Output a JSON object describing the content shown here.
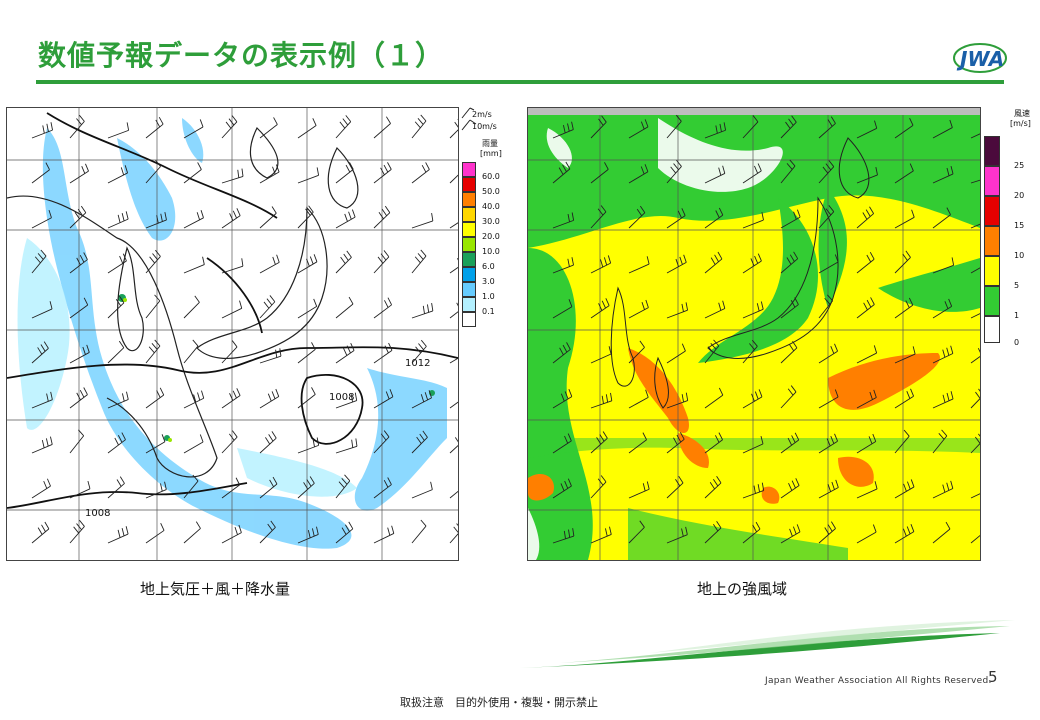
{
  "slide": {
    "title": "数値予報データの表示例（１）",
    "logo_text": "JWA",
    "page_number": "5",
    "copyright": "Japan Weather Association All Rights Reserved.",
    "notice": "取扱注意　目的外使用・複製・開示禁止"
  },
  "left_map": {
    "caption": "地上気圧＋風＋降水量",
    "isobar_labels": [
      "1012",
      "1008",
      "1008"
    ],
    "wind_legend": [
      "2m/s",
      "10m/s"
    ],
    "legend_title": "雨量",
    "legend_unit": "[mm]",
    "legend_levels": [
      "60.0",
      "50.0",
      "40.0",
      "30.0",
      "20.0",
      "10.0",
      "6.0",
      "3.0",
      "1.0",
      "0.1"
    ],
    "legend_colors": [
      "#ff33cc",
      "#e60000",
      "#ff7f00",
      "#ffd700",
      "#ffff00",
      "#99e600",
      "#1aa05a",
      "#00a0e9",
      "#66ccff",
      "#b3f0ff",
      "#ffffff"
    ]
  },
  "right_map": {
    "caption": "地上の強風域",
    "legend_title": "風速",
    "legend_unit": "[m/s]",
    "legend_levels": [
      "25",
      "20",
      "15",
      "10",
      "5",
      "1",
      "0"
    ],
    "legend_colors": [
      "#4b0a3c",
      "#ff33cc",
      "#e60000",
      "#ff7f00",
      "#ffff00",
      "#33cc33",
      "#ffffff"
    ]
  }
}
